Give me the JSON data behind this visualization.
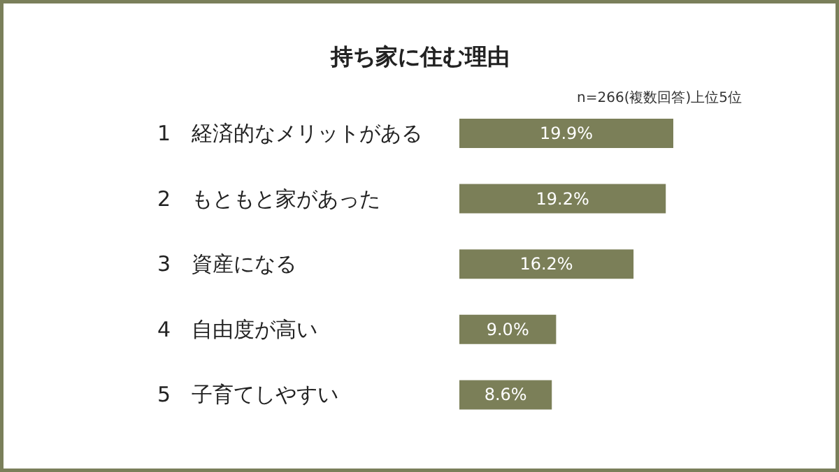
{
  "chart_data": {
    "type": "bar",
    "orientation": "horizontal",
    "title": "持ち家に住む理由",
    "subtitle": "n=266(複数回答)上位5位",
    "categories": [
      "1　経済的なメリットがある",
      "2　もともと家があった",
      "3　資産になる",
      "4　自由度が高い",
      "5　子育てしやすい"
    ],
    "values": [
      19.9,
      19.2,
      16.2,
      9.0,
      8.6
    ],
    "color": "#7b7f58",
    "data_labels": true,
    "value_labels": [
      "19.9%",
      "19.2%",
      "16.2%",
      "9.0%",
      "8.6%"
    ],
    "grid": false
  }
}
